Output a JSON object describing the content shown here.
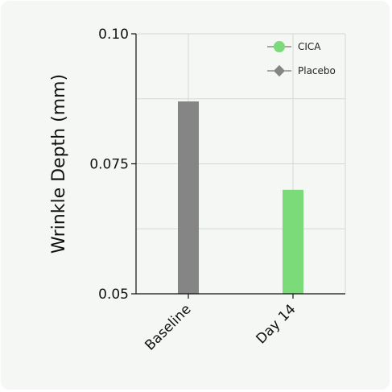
{
  "chart_data": {
    "type": "bar",
    "categories": [
      "Baseline",
      "Day 14"
    ],
    "series": [
      {
        "name": "CICA",
        "values": [
          null,
          0.07
        ],
        "color": "#7adb78"
      },
      {
        "name": "Placebo",
        "values": [
          0.087,
          null
        ],
        "color": "#858585"
      }
    ],
    "xlabel": "",
    "ylabel": "Wrinkle Depth (mm)",
    "ylim": [
      0.05,
      0.1
    ],
    "yticks": [
      0.05,
      0.075,
      0.1
    ],
    "ytick_labels": [
      "0.05",
      "0.075",
      "0.10"
    ],
    "grid": true,
    "legend_position": "top-right",
    "legend_markers": {
      "CICA": "circle",
      "Placebo": "diamond"
    }
  }
}
